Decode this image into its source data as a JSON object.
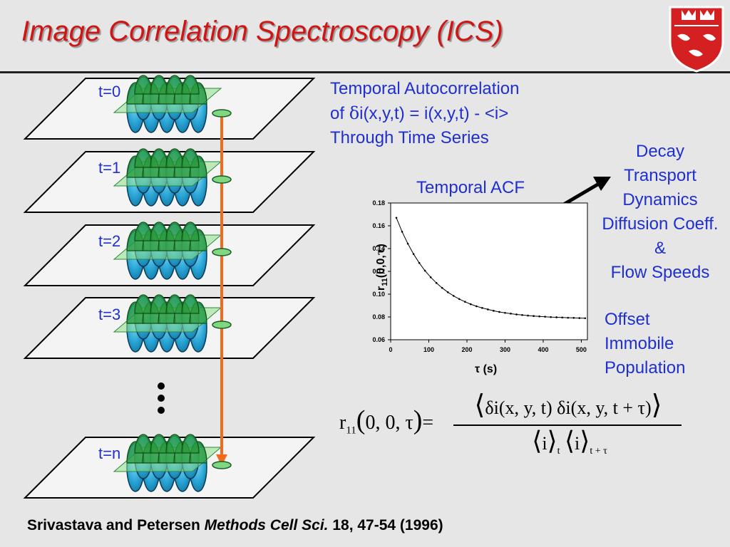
{
  "title": "Image Correlation Spectroscopy (ICS)",
  "frames": [
    {
      "label": "t=0"
    },
    {
      "label": "t=1"
    },
    {
      "label": "t=2"
    },
    {
      "label": "t=3"
    },
    {
      "label": "t=n"
    }
  ],
  "autocorr_text": {
    "line1": "Temporal Autocorrelation",
    "line2_prefix": "of ",
    "delta": "δ",
    "line2_rest": "i(x,y,t) = i(x,y,t) - <i>",
    "line3": "Through Time Series"
  },
  "acf_title": "Temporal ACF",
  "decay_list": [
    "Decay",
    "Transport",
    "Dynamics",
    "Diffusion Coeff.",
    "&",
    "Flow Speeds"
  ],
  "offset_list": [
    "Offset",
    "Immobile",
    "Population"
  ],
  "chart_data": {
    "type": "line",
    "xlabel": "τ (s)",
    "ylabel": "r11(0,0,τ)",
    "xlim": [
      0,
      500
    ],
    "ylim": [
      0.06,
      0.18
    ],
    "x_ticks": [
      0,
      100,
      200,
      300,
      400,
      500
    ],
    "y_ticks": [
      "0.06",
      "0.08",
      "0.10",
      "0.12",
      "0.14",
      "0.16",
      "0.18"
    ],
    "grid": false,
    "series": [
      {
        "x": [
          15,
          30,
          45,
          60,
          75,
          90,
          105,
          120,
          135,
          150,
          165,
          180,
          195,
          210,
          225,
          240,
          255,
          270,
          285,
          300,
          315,
          330,
          345,
          360,
          375,
          390,
          405,
          420,
          435,
          450,
          465,
          480,
          495,
          510
        ],
        "values": [
          0.167,
          0.1548,
          0.1443,
          0.1352,
          0.1274,
          0.1206,
          0.1148,
          0.1098,
          0.1055,
          0.1017,
          0.0985,
          0.0957,
          0.0933,
          0.0912,
          0.0894,
          0.0879,
          0.0866,
          0.0854,
          0.0844,
          0.0836,
          0.0829,
          0.0822,
          0.0817,
          0.0812,
          0.0808,
          0.0805,
          0.0802,
          0.0799,
          0.0797,
          0.0795,
          0.0793,
          0.0792,
          0.079,
          0.0789
        ]
      }
    ]
  },
  "equation": {
    "lhs": "r",
    "lhs_sub": "11",
    "lhs_args": "0, 0, τ",
    "numerator": "δi(x, y, t) δi(x, y, t + τ)",
    "denominator_i": "i",
    "sub_t": "t",
    "sub_ttau": "t + τ"
  },
  "citation": {
    "authors": "Srivastava and Petersen ",
    "journal": "Methods Cell Sci.",
    "rest": " 18, 47-54 (1996)"
  },
  "colors": {
    "title": "#d01515",
    "text_blue": "#1f2fd0",
    "arrow_orange": "#f26b1d",
    "cell_blue": "#2aa6d6",
    "cell_green": "#2a9a3a",
    "crest_red": "#d42020"
  }
}
